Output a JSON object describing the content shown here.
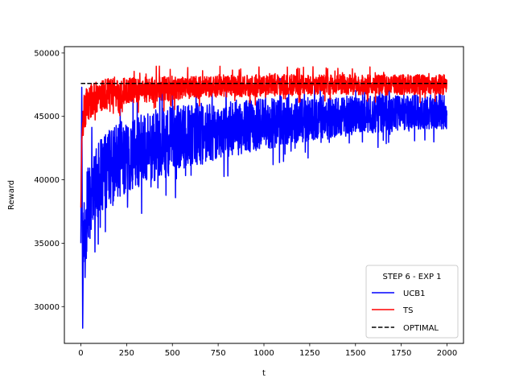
{
  "chart_data": {
    "type": "line",
    "title": "",
    "xlabel": "t",
    "ylabel": "Reward",
    "xlim": [
      -90,
      2090
    ],
    "ylim": [
      27100,
      50500
    ],
    "xticks": [
      0,
      250,
      500,
      750,
      1000,
      1250,
      1500,
      1750,
      2000
    ],
    "yticks": [
      30000,
      35000,
      40000,
      45000,
      50000
    ],
    "grid": false,
    "legend": {
      "title": "STEP 6 - EXP 1",
      "placement": "lower-right"
    },
    "series": [
      {
        "name": "UCB1",
        "color": "#0000ff",
        "style": "solid",
        "x": [
          0,
          5,
          10,
          15,
          20,
          30,
          40,
          50,
          60,
          80,
          100,
          125,
          150,
          175,
          200,
          250,
          300,
          350,
          400,
          450,
          500,
          550,
          600,
          650,
          700,
          750,
          800,
          850,
          900,
          950,
          1000,
          1050,
          1100,
          1150,
          1200,
          1250,
          1300,
          1350,
          1400,
          1450,
          1500,
          1550,
          1600,
          1650,
          1700,
          1750,
          1800,
          1850,
          1900,
          1950,
          1999
        ],
        "y": [
          35000,
          47300,
          28300,
          38000,
          34700,
          36500,
          37500,
          38200,
          38800,
          39500,
          40000,
          40500,
          40900,
          41200,
          41500,
          41900,
          42200,
          42500,
          42700,
          42900,
          43100,
          43300,
          43500,
          43600,
          43800,
          43900,
          44000,
          44100,
          44200,
          44300,
          44400,
          44500,
          44600,
          44700,
          44700,
          44800,
          44900,
          44900,
          45000,
          45000,
          45100,
          45100,
          45200,
          45200,
          45200,
          45300,
          45300,
          45300,
          45400,
          45400,
          45400
        ],
        "spread": [
          0,
          0,
          0,
          2500,
          3000,
          3000,
          3000,
          3000,
          3000,
          3000,
          3000,
          3000,
          3000,
          3000,
          3000,
          3000,
          3000,
          2800,
          2800,
          2800,
          2700,
          2600,
          2500,
          2500,
          2400,
          2300,
          2200,
          2200,
          2100,
          2000,
          2000,
          2000,
          1900,
          1900,
          1800,
          1700,
          1700,
          1600,
          1600,
          1600,
          1500,
          1500,
          1500,
          1500,
          1400,
          1400,
          1400,
          1400,
          1400,
          1400,
          1400
        ]
      },
      {
        "name": "TS",
        "color": "#ff0000",
        "style": "solid",
        "x": [
          0,
          5,
          10,
          15,
          20,
          30,
          40,
          50,
          60,
          80,
          100,
          125,
          150,
          175,
          200,
          250,
          300,
          350,
          400,
          450,
          500,
          550,
          600,
          650,
          700,
          750,
          800,
          850,
          900,
          950,
          1000,
          1050,
          1100,
          1150,
          1200,
          1250,
          1300,
          1350,
          1400,
          1450,
          1500,
          1550,
          1600,
          1650,
          1700,
          1750,
          1800,
          1850,
          1900,
          1950,
          1999
        ],
        "y": [
          37800,
          43000,
          44500,
          45200,
          45400,
          45800,
          46000,
          46200,
          46300,
          46500,
          46600,
          46700,
          46800,
          46900,
          46900,
          47000,
          47100,
          47100,
          47200,
          47200,
          47200,
          47300,
          47300,
          47300,
          47300,
          47400,
          47400,
          47400,
          47400,
          47400,
          47400,
          47400,
          47500,
          47500,
          47500,
          47500,
          47500,
          47500,
          47500,
          47500,
          47500,
          47500,
          47500,
          47500,
          47500,
          47500,
          47500,
          47500,
          47500,
          47500,
          47500
        ],
        "spread": [
          0,
          1500,
          1500,
          1500,
          1500,
          1400,
          1400,
          1400,
          1300,
          1300,
          1200,
          1200,
          1200,
          1100,
          1100,
          1100,
          1000,
          1000,
          1000,
          1000,
          1000,
          900,
          900,
          900,
          900,
          900,
          900,
          900,
          900,
          900,
          900,
          900,
          800,
          800,
          800,
          800,
          800,
          800,
          800,
          800,
          800,
          800,
          800,
          800,
          800,
          800,
          800,
          800,
          800,
          800,
          800
        ]
      },
      {
        "name": "OPTIMAL",
        "color": "#000000",
        "style": "dashed",
        "x": [
          0,
          1999
        ],
        "y": [
          47600,
          47600
        ]
      }
    ]
  }
}
